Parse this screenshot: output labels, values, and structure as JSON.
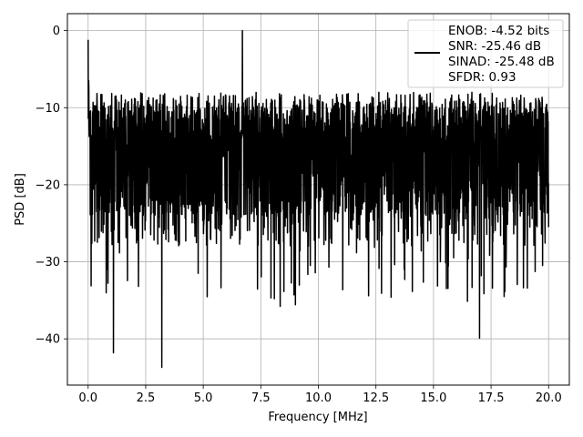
{
  "chart_data": {
    "type": "line",
    "title": "",
    "xlabel": "Frequency [MHz]",
    "ylabel": "PSD [dB]",
    "xlim": [
      -0.9,
      20.9
    ],
    "ylim": [
      -46.0,
      2.2
    ],
    "xticks": [
      0.0,
      2.5,
      5.0,
      7.5,
      10.0,
      12.5,
      15.0,
      17.5,
      20.0
    ],
    "xtick_labels": [
      "0.0",
      "2.5",
      "5.0",
      "7.5",
      "10.0",
      "12.5",
      "15.0",
      "17.5",
      "20.0"
    ],
    "yticks": [
      0,
      -10,
      -20,
      -30,
      -40
    ],
    "ytick_labels": [
      "0",
      "−10",
      "−20",
      "−30",
      "−40"
    ],
    "grid": true,
    "legend_position": "top-right",
    "series": [
      {
        "color": "#000000",
        "description": "dense noisy PSD trace; values mostly between -25 dB and -8 dB",
        "x_range": [
          0.0,
          20.0
        ],
        "notable_points": [
          {
            "x": 0.0,
            "y": -1.2
          },
          {
            "x": 1.1,
            "y": -41.8
          },
          {
            "x": 3.2,
            "y": -43.7
          },
          {
            "x": 6.7,
            "y": 0.0
          },
          {
            "x": 17.0,
            "y": -39.9
          }
        ]
      }
    ],
    "legend_lines": [
      "ENOB: -4.52 bits",
      "SNR: -25.46 dB",
      "SINAD: -25.48 dB",
      "SFDR: 0.93"
    ]
  }
}
